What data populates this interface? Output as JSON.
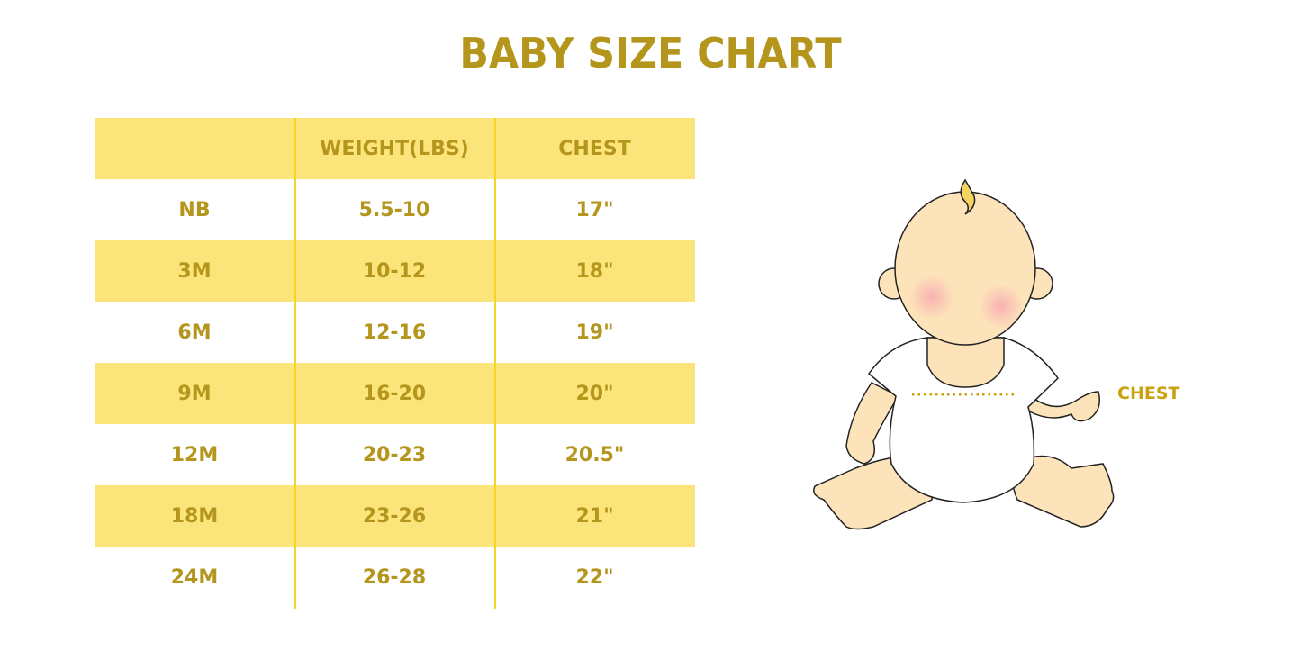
{
  "title": "BABY SIZE CHART",
  "table": {
    "headers": [
      "",
      "WEIGHT(LBS)",
      "CHEST"
    ],
    "rows": [
      [
        "NB",
        "5.5-10",
        "17\""
      ],
      [
        "3M",
        "10-12",
        "18\""
      ],
      [
        "6M",
        "12-16",
        "19\""
      ],
      [
        "9M",
        "16-20",
        "20\""
      ],
      [
        "12M",
        "20-23",
        "20.5\""
      ],
      [
        "18M",
        "23-26",
        "21\""
      ],
      [
        "24M",
        "26-28",
        "22\""
      ]
    ]
  },
  "illustration": {
    "chest_label": "CHEST"
  },
  "colors": {
    "accent_text": "#B5961D",
    "stripe": "#FBE57A",
    "divider": "#F5D428",
    "skin": "#FDE3BA"
  }
}
